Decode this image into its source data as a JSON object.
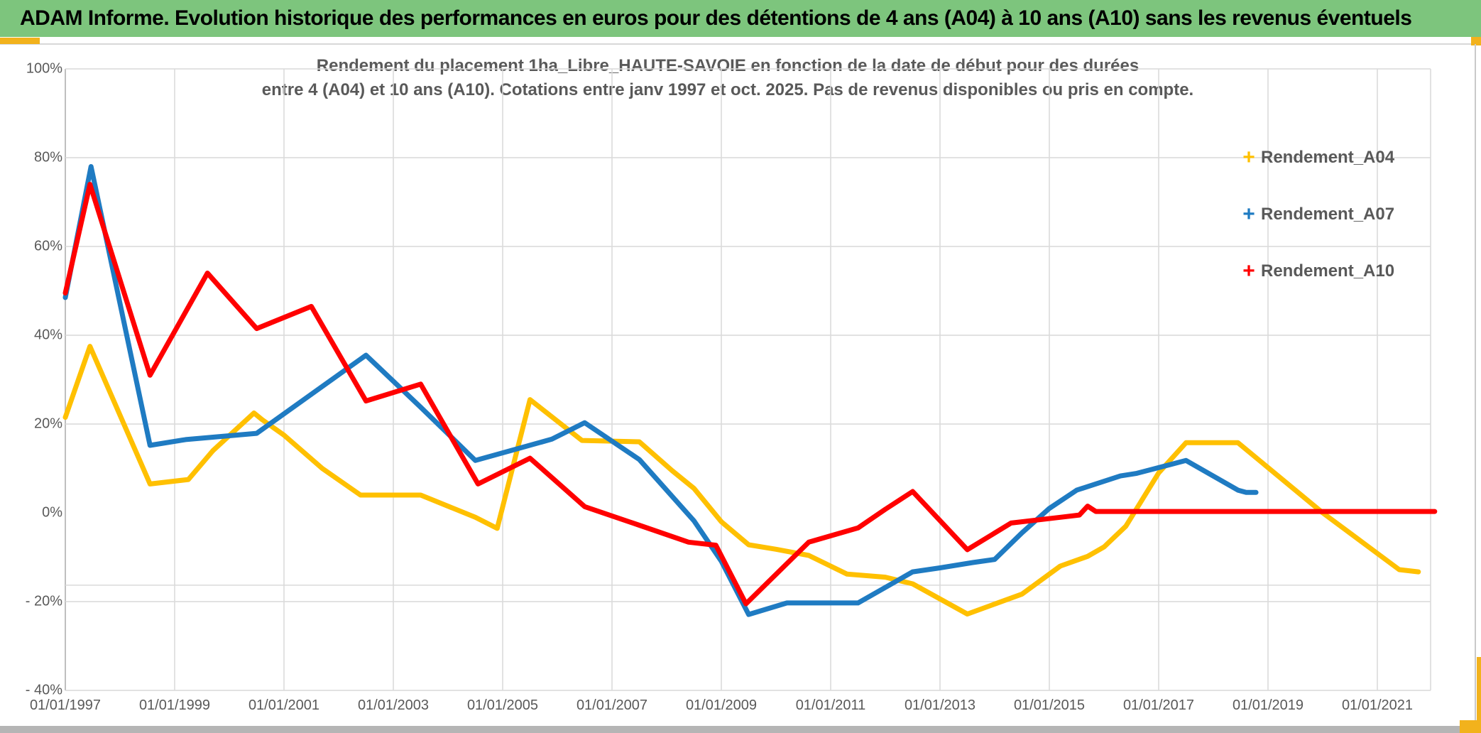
{
  "banner": {
    "title": "ADAM Informe. Evolution historique des performances en euros pour des détentions de 4 ans (A04) à 10 ans (A10) sans les revenus éventuels"
  },
  "chart": {
    "title_line1": "Rendement du placement 1ha_Libre_HAUTE-SAVOIE en fonction de la date de début pour des durées",
    "title_line2": "entre 4 (A04) et 10 ans (A10). Cotations entre janv 1997 et oct. 2025. Pas de revenus disponibles ou pris en compte.",
    "legend_marker_glyph": "+",
    "text_color": "#595959",
    "gridline_color": "#d9d9d9",
    "banner_color": "#7dc57d",
    "accent_gold": "#f2b21c"
  },
  "chart_data": {
    "type": "line",
    "title": "Rendement du placement 1ha_Libre_HAUTE-SAVOIE en fonction de la date de début pour des durées entre 4 (A04) et 10 ans (A10). Cotations entre janv 1997 et oct. 2025. Pas de revenus disponibles ou pris en compte.",
    "xlabel": "",
    "ylabel": "",
    "x_axis": {
      "tick_labels": [
        "01/01/1997",
        "01/01/1999",
        "01/01/2001",
        "01/01/2003",
        "01/01/2005",
        "01/01/2007",
        "01/01/2009",
        "01/01/2011",
        "01/01/2013",
        "01/01/2015",
        "01/01/2017",
        "01/01/2019",
        "01/01/2021"
      ],
      "tick_years": [
        1997,
        1999,
        2001,
        2003,
        2005,
        2007,
        2009,
        2011,
        2013,
        2015,
        2017,
        2019,
        2021
      ],
      "range_years": [
        1997.0,
        2022.0
      ]
    },
    "y_axis": {
      "ticks": [
        {
          "label": "100%",
          "value": 100,
          "grid": true
        },
        {
          "label": "80%",
          "value": 80,
          "grid": true
        },
        {
          "label": "60%",
          "value": 60,
          "grid": true
        },
        {
          "label": "40%",
          "value": 40,
          "grid": true
        },
        {
          "label": "20%",
          "value": 20,
          "grid": true
        },
        {
          "label": "0%",
          "value": 0,
          "grid": false
        },
        {
          "label": "- 20%",
          "value": -20,
          "grid": true
        },
        {
          "label": "- 40%",
          "value": -40,
          "grid": true
        }
      ],
      "extra_hline_values": [
        -16.3
      ],
      "range": [
        -40,
        100
      ]
    },
    "legend_position": "right",
    "series": [
      {
        "name": "Rendement_A04",
        "color": "#FFC000",
        "points": [
          [
            1997.0,
            21.5
          ],
          [
            1997.45,
            37.5
          ],
          [
            1998.55,
            6.5
          ],
          [
            1999.25,
            7.5
          ],
          [
            1999.7,
            14
          ],
          [
            2000.45,
            22.5
          ],
          [
            2000.6,
            21
          ],
          [
            2001.0,
            17.5
          ],
          [
            2001.7,
            10
          ],
          [
            2002.4,
            4
          ],
          [
            2003.5,
            4
          ],
          [
            2004.5,
            -1
          ],
          [
            2004.9,
            -3.5
          ],
          [
            2005.5,
            25.5
          ],
          [
            2006.45,
            16.3
          ],
          [
            2007.5,
            16
          ],
          [
            2008.1,
            9.5
          ],
          [
            2008.5,
            5.5
          ],
          [
            2009.0,
            -2
          ],
          [
            2009.5,
            -7.2
          ],
          [
            2010.0,
            -8.2
          ],
          [
            2010.6,
            -9.6
          ],
          [
            2011.3,
            -13.8
          ],
          [
            2012.0,
            -14.5
          ],
          [
            2012.5,
            -16
          ],
          [
            2013.5,
            -22.8
          ],
          [
            2014.5,
            -18.3
          ],
          [
            2015.2,
            -12
          ],
          [
            2015.7,
            -9.8
          ],
          [
            2016.0,
            -7.7
          ],
          [
            2016.4,
            -3
          ],
          [
            2017.0,
            9
          ],
          [
            2017.5,
            15.8
          ],
          [
            2018.45,
            15.8
          ],
          [
            2020.0,
            0
          ],
          [
            2021.4,
            -12.8
          ],
          [
            2021.75,
            -13.3
          ]
        ]
      },
      {
        "name": "Rendement_A07",
        "color": "#1F7BC2",
        "points": [
          [
            1997.0,
            48.5
          ],
          [
            1997.47,
            78
          ],
          [
            1998.55,
            15.2
          ],
          [
            1999.2,
            16.5
          ],
          [
            2000.5,
            17.9
          ],
          [
            2002.5,
            35.5
          ],
          [
            2003.5,
            23.8
          ],
          [
            2004.5,
            11.8
          ],
          [
            2005.9,
            16.6
          ],
          [
            2006.5,
            20.3
          ],
          [
            2007.5,
            12
          ],
          [
            2008.5,
            -1.8
          ],
          [
            2009.0,
            -10.9
          ],
          [
            2009.5,
            -22.9
          ],
          [
            2010.2,
            -20.3
          ],
          [
            2011.5,
            -20.3
          ],
          [
            2012.5,
            -13.3
          ],
          [
            2013.0,
            -12.4
          ],
          [
            2013.6,
            -11.2
          ],
          [
            2014.0,
            -10.5
          ],
          [
            2014.5,
            -4.5
          ],
          [
            2015.0,
            1
          ],
          [
            2015.5,
            5.1
          ],
          [
            2016.3,
            8.3
          ],
          [
            2016.6,
            8.9
          ],
          [
            2017.5,
            11.8
          ],
          [
            2018.45,
            5.1
          ],
          [
            2018.6,
            4.6
          ],
          [
            2018.78,
            4.6
          ]
        ]
      },
      {
        "name": "Rendement_A10",
        "color": "#FF0000",
        "points": [
          [
            1997.0,
            49.5
          ],
          [
            1997.45,
            74
          ],
          [
            1998.55,
            31
          ],
          [
            1999.6,
            54
          ],
          [
            2000.5,
            41.5
          ],
          [
            2001.5,
            46.5
          ],
          [
            2002.5,
            25.2
          ],
          [
            2003.5,
            29
          ],
          [
            2004.55,
            6.5
          ],
          [
            2005.5,
            12.3
          ],
          [
            2006.5,
            1.4
          ],
          [
            2007.5,
            -2.8
          ],
          [
            2008.4,
            -6.6
          ],
          [
            2008.9,
            -7.3
          ],
          [
            2009.45,
            -20.5
          ],
          [
            2010.6,
            -6.6
          ],
          [
            2011.5,
            -3.4
          ],
          [
            2012.0,
            0.8
          ],
          [
            2012.5,
            4.8
          ],
          [
            2013.5,
            -8.3
          ],
          [
            2014.3,
            -2.3
          ],
          [
            2015.2,
            -1.0
          ],
          [
            2015.55,
            -0.5
          ],
          [
            2015.7,
            1.5
          ],
          [
            2015.85,
            0.3
          ],
          [
            2022.05,
            0.3
          ]
        ]
      }
    ]
  }
}
